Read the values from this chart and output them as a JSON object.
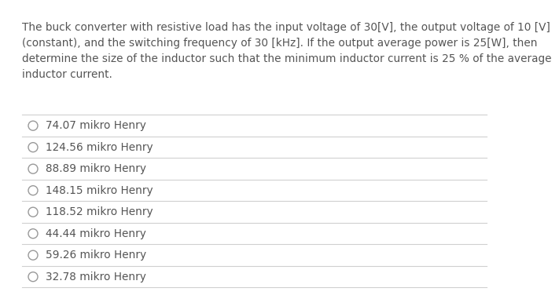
{
  "question_lines": [
    "The buck converter with resistive load has the input voltage of 30[V], the output voltage of 10 [V]",
    "(constant), and the switching frequency of 30 [kHz]. If the output average power is 25[W], then",
    "determine the size of the inductor such that the minimum inductor current is 25 % of the average",
    "inductor current."
  ],
  "options": [
    "74.07 mikro Henry",
    "124.56 mikro Henry",
    "88.89 mikro Henry",
    "148.15 mikro Henry",
    "118.52 mikro Henry",
    "44.44 mikro Henry",
    "59.26 mikro Henry",
    "32.78 mikro Henry"
  ],
  "bg_color": "#ffffff",
  "text_color": "#555555",
  "line_color": "#d0d0d0",
  "question_fontsize": 9.8,
  "option_fontsize": 9.8,
  "circle_color": "#999999"
}
